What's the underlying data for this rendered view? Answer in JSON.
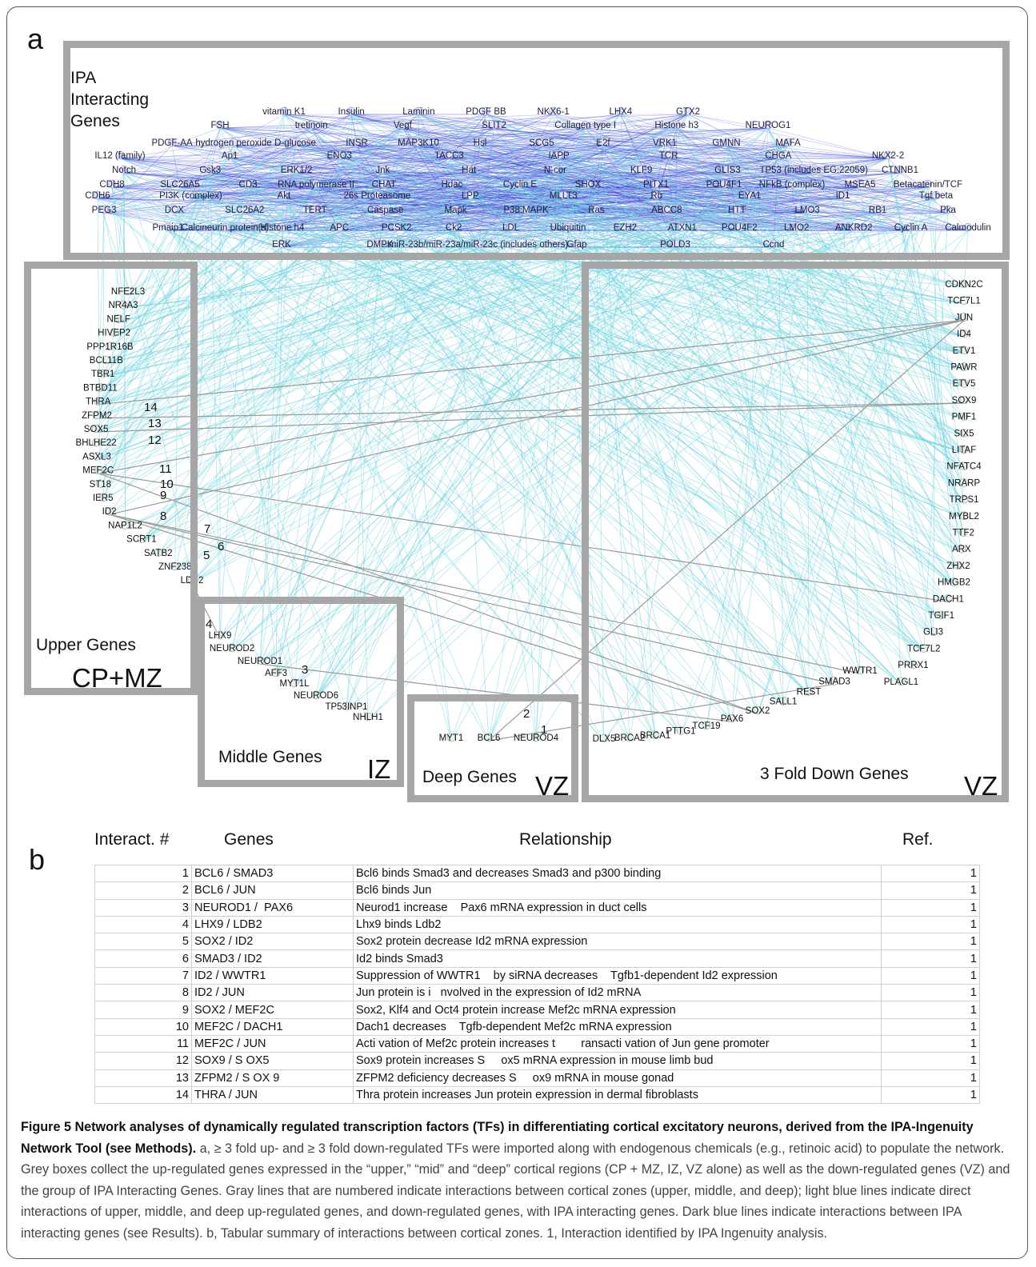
{
  "figure": {
    "panel_a": "a",
    "panel_b": "b"
  },
  "groups": {
    "ipa": "IPA\nInteracting\nGenes",
    "upper": "Upper Genes",
    "upper_zone": "CP+MZ",
    "middle": "Middle Genes",
    "middle_zone": "IZ",
    "deep": "Deep Genes",
    "deep_zone": "VZ",
    "down": "3 Fold Down Genes",
    "down_zone": "VZ"
  },
  "ipa_genes": [
    "vitamin K1",
    "Insulin",
    "Laminin",
    "PDGF BB",
    "NKX6-1",
    "LHX4",
    "GTX2",
    "FSH",
    "tretinoin",
    "Vegf",
    "SLIT2",
    "Collagen type I",
    "Histone h3",
    "NEUROG1",
    "PDGF-AA",
    "hydrogen peroxide",
    "D-glucose",
    "INSR",
    "MAP3K10",
    "Hsl",
    "SCG5",
    "E2f",
    "VRK1",
    "GMNN",
    "MAFA",
    "IL12 (family)",
    "Ap1",
    "ENO3",
    "TACC3",
    "IAPP",
    "TCR",
    "CHGA",
    "NKX2-2",
    "Notch",
    "Gsk3",
    "ERK1/2",
    "Jnk",
    "Hat",
    "N-cor",
    "KLF9",
    "GLIS3",
    "TP53 (includes EG:22059)",
    "CTNNB1",
    "CDH8",
    "SLC26A5",
    "CD3",
    "RNA polymerase II",
    "CHAT",
    "Hdac",
    "Cyclin E",
    "SHOX",
    "PITX1",
    "POU4F1",
    "NFkB (complex)",
    "MSEA5",
    "Betacatenin/TCF",
    "CDH6",
    "PI3K (complex)",
    "Akt",
    "26s Proteasome",
    "LPP",
    "MLLT3",
    "Rb",
    "EYA1",
    "ID1",
    "Tgf beta",
    "PEG3",
    "DCX",
    "SLC26A2",
    "TERT",
    "Caspase",
    "Mapk",
    "P38 MAPK",
    "Ras",
    "ABCC8",
    "HTT",
    "LMO3",
    "RB1",
    "Pka",
    "Pmaip1",
    "Calcineurin protein(s)",
    "Histone h4",
    "APC",
    "PCSK2",
    "Ck2",
    "LDL",
    "Ubiquitin",
    "EZH2",
    "ATXN1",
    "POU4F2",
    "LMO2",
    "ANKRD2",
    "Cyclin A",
    "Calmodulin",
    "ERK",
    "DMPK",
    "miR-23b/miR-23a/miR-23c (includes others)",
    "Gfap",
    "POLD3",
    "Ccnd"
  ],
  "upper_genes": [
    "NFE2L3",
    "NR4A3",
    "NELF",
    "HIVEP2",
    "PPP1R16B",
    "BCL11B",
    "TBR1",
    "BTBD11",
    "THRA",
    "ZFPM2",
    "SOX5",
    "BHLHE22",
    "ASXL3",
    "MEF2C",
    "ST18",
    "IER5",
    "ID2",
    "NAP1L2",
    "SCRT1",
    "SATB2",
    "ZNF238",
    "LDB2"
  ],
  "middle_genes": [
    "LHX9",
    "NEUROD2",
    "NEUROD1",
    "AFF3",
    "MYT1L",
    "NEUROD6",
    "TP53INP1",
    "NHLH1"
  ],
  "deep_genes": [
    "MYT1",
    "BCL6",
    "NEUROD4"
  ],
  "down_genes": [
    "CDKN2C",
    "TCF7L1",
    "JUN",
    "ID4",
    "ETV1",
    "PAWR",
    "ETV5",
    "SOX9",
    "PMF1",
    "SIX5",
    "LITAF",
    "NFATC4",
    "NRARP",
    "TRPS1",
    "MYBL2",
    "TTF2",
    "ARX",
    "ZHX2",
    "HMGB2",
    "DACH1",
    "TGIF1",
    "GLI3",
    "TCF7L2",
    "PRRX1",
    "PLAGL1",
    "WWTR1",
    "SMAD3",
    "REST",
    "SALL1",
    "SOX2",
    "PAX6",
    "TCF19",
    "PTTG1",
    "BRCA1",
    "BRCA2",
    "DLX5"
  ],
  "interaction_numbers": [
    "1",
    "2",
    "3",
    "4",
    "5",
    "6",
    "7",
    "8",
    "9",
    "10",
    "11",
    "12",
    "13",
    "14"
  ],
  "table": {
    "headers": {
      "num": "Interact. #",
      "genes": "Genes",
      "relationship": "Relationship",
      "ref": "Ref."
    },
    "rows": [
      {
        "num": "1",
        "genes": "BCL6 / SMAD3",
        "relationship": "Bcl6 binds Smad3 and decreases Smad3 and p300 binding",
        "ref": "1"
      },
      {
        "num": "2",
        "genes": "BCL6 / JUN",
        "relationship": "Bcl6 binds Jun",
        "ref": "1"
      },
      {
        "num": "3",
        "genes": "NEUROD1 /  PAX6",
        "relationship": "Neurod1 increase    Pax6 mRNA expression in duct cells",
        "ref": "1"
      },
      {
        "num": "4",
        "genes": "LHX9 / LDB2",
        "relationship": "Lhx9 binds Ldb2",
        "ref": "1"
      },
      {
        "num": "5",
        "genes": "SOX2 / ID2",
        "relationship": "Sox2 protein decrease Id2 mRNA expression",
        "ref": "1"
      },
      {
        "num": "6",
        "genes": "SMAD3 / ID2",
        "relationship": "Id2 binds Smad3",
        "ref": "1"
      },
      {
        "num": "7",
        "genes": "ID2 / WWTR1",
        "relationship": "Suppression of WWTR1    by siRNA decreases    Tgfb1-dependent Id2 expression",
        "ref": "1"
      },
      {
        "num": "8",
        "genes": "ID2 / JUN",
        "relationship": "Jun protein is i   nvolved in the expression of Id2 mRNA",
        "ref": "1"
      },
      {
        "num": "9",
        "genes": "SOX2 / MEF2C",
        "relationship": "Sox2, Klf4 and Oct4 protein increase Mef2c mRNA expression",
        "ref": "1"
      },
      {
        "num": "10",
        "genes": "MEF2C / DACH1",
        "relationship": "Dach1 decreases    Tgfb-dependent Mef2c mRNA expression",
        "ref": "1"
      },
      {
        "num": "11",
        "genes": "MEF2C / JUN",
        "relationship": "Acti vation of Mef2c protein increases t        ransacti vation of Jun gene promoter",
        "ref": "1"
      },
      {
        "num": "12",
        "genes": "SOX9 / S OX5",
        "relationship": "Sox9 protein increases S     ox5 mRNA expression in mouse limb bud",
        "ref": "1"
      },
      {
        "num": "13",
        "genes": "ZFPM2 / S OX 9",
        "relationship": "ZFPM2 deficiency decreases S     ox9 mRNA in mouse gonad",
        "ref": "1"
      },
      {
        "num": "14",
        "genes": "THRA / JUN",
        "relationship": "Thra protein increases Jun protein expression in dermal fibroblasts",
        "ref": "1"
      }
    ]
  },
  "caption": {
    "title": "Figure 5 Network analyses of dynamically regulated transcription factors (TFs) in differentiating cortical excitatory neurons, derived from the IPA-Ingenuity Network Tool (see Methods).",
    "body": " a, ≥ 3 fold up- and ≥ 3 fold down-regulated TFs were imported along with endogenous chemicals (e.g., retinoic acid) to populate the network. Grey boxes collect the up-regulated genes expressed in the “upper,” “mid” and “deep” cortical regions (CP + MZ, IZ, VZ alone) as well as the down-regulated genes (VZ) and the group of IPA Interacting Genes. Gray lines that are numbered indicate interactions between cortical zones (upper, middle, and deep); light blue lines indicate direct interactions of upper, middle, and deep up-regulated genes, and down-regulated genes, with IPA interacting genes. Dark blue lines indicate interactions between IPA interacting genes (see Results). b, Tabular summary of interactions between cortical zones. 1, Interaction identified by IPA Ingenuity analysis."
  },
  "colors": {
    "box": "#a6a6a6",
    "ipa_edges": "#2b3fd6",
    "cross_edges": "#6fd3e0",
    "zone_edges": "#9a9a9a",
    "node_green": "#5fbf5f"
  }
}
